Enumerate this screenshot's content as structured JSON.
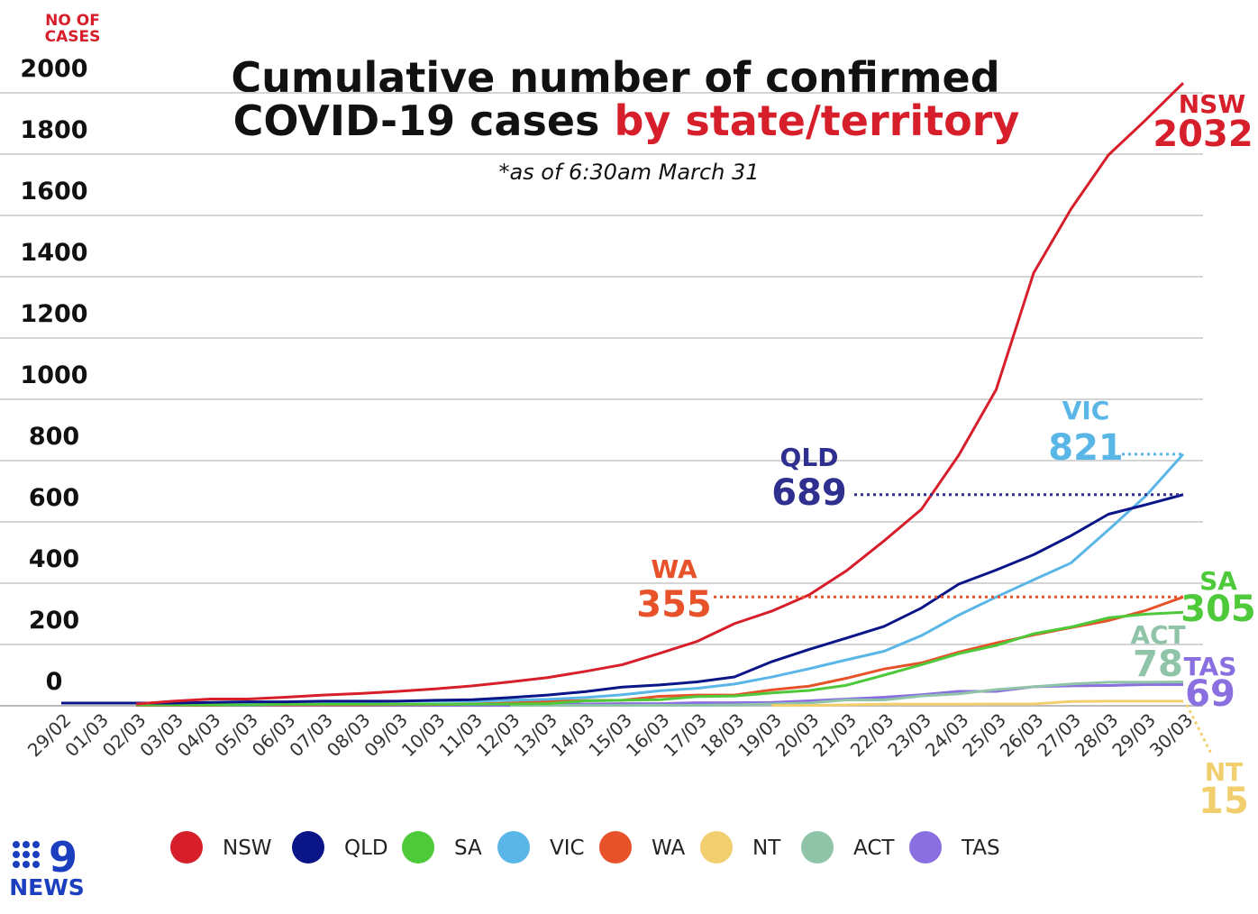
{
  "chart_data": {
    "type": "line",
    "title": [
      "Cumulative number of confirmed",
      "COVID-19 cases",
      "by state/territory"
    ],
    "subtitle": "*as of 6:30am March 31",
    "y_label": "NO OF CASES",
    "categories": [
      "29/02",
      "01/03",
      "02/03",
      "03/03",
      "04/03",
      "05/03",
      "06/03",
      "07/03",
      "08/03",
      "09/03",
      "10/03",
      "11/03",
      "12/03",
      "13/03",
      "14/03",
      "15/03",
      "16/03",
      "17/03",
      "18/03",
      "19/03",
      "20/03",
      "21/03",
      "22/03",
      "23/03",
      "24/03",
      "25/03",
      "26/03",
      "27/03",
      "28/03",
      "29/03",
      "30/03"
    ],
    "ylim": [
      0,
      2000
    ],
    "yticks": [
      0,
      200,
      400,
      600,
      800,
      1000,
      1200,
      1400,
      1600,
      1800,
      2000
    ],
    "grid": true,
    "series": [
      {
        "name": "NSW",
        "color": "#d71f2b",
        "values": [
          null,
          null,
          6,
          15,
          22,
          22,
          28,
          35,
          40,
          47,
          55,
          65,
          78,
          92,
          112,
          134,
          171,
          210,
          268,
          309,
          362,
          441,
          538,
          641,
          818,
          1032,
          1412,
          1621,
          1797,
          1912,
          2032
        ]
      },
      {
        "name": "QLD",
        "color": "#0a1588",
        "values": [
          9,
          9,
          9,
          9,
          11,
          13,
          13,
          15,
          15,
          15,
          18,
          20,
          27,
          35,
          46,
          61,
          68,
          78,
          94,
          144,
          184,
          221,
          259,
          319,
          397,
          443,
          493,
          555,
          625,
          656,
          689
        ]
      },
      {
        "name": "SA",
        "color": "#4ec93a",
        "values": [
          null,
          null,
          3,
          3,
          3,
          3,
          5,
          5,
          5,
          5,
          5,
          5,
          6,
          7,
          16,
          18,
          20,
          30,
          32,
          42,
          50,
          67,
          100,
          134,
          170,
          197,
          235,
          257,
          287,
          299,
          305
        ]
      },
      {
        "name": "VIC",
        "color": "#5ab6e6",
        "values": [
          null,
          null,
          9,
          9,
          10,
          10,
          11,
          11,
          11,
          15,
          15,
          15,
          18,
          21,
          27,
          36,
          49,
          57,
          71,
          94,
          121,
          150,
          178,
          229,
          296,
          355,
          411,
          466,
          574,
          685,
          821
        ]
      },
      {
        "name": "WA",
        "color": "#e8522a",
        "values": [
          null,
          null,
          2,
          2,
          2,
          3,
          3,
          3,
          3,
          4,
          4,
          6,
          9,
          14,
          17,
          18,
          31,
          35,
          35,
          52,
          64,
          90,
          120,
          140,
          175,
          205,
          231,
          255,
          278,
          311,
          355
        ]
      },
      {
        "name": "NT",
        "color": "#f2cf6e",
        "values": [
          null,
          null,
          null,
          null,
          null,
          null,
          null,
          null,
          null,
          null,
          null,
          null,
          null,
          null,
          null,
          null,
          null,
          null,
          null,
          1,
          1,
          3,
          5,
          5,
          5,
          6,
          6,
          14,
          15,
          15,
          15
        ]
      },
      {
        "name": "ACT",
        "color": "#8fc4a8",
        "values": [
          null,
          null,
          null,
          null,
          null,
          null,
          null,
          null,
          null,
          null,
          null,
          null,
          1,
          1,
          1,
          1,
          2,
          2,
          3,
          6,
          9,
          19,
          19,
          32,
          39,
          53,
          62,
          71,
          77,
          77,
          78
        ]
      },
      {
        "name": "TAS",
        "color": "#8a6fe0",
        "values": [
          null,
          null,
          1,
          1,
          1,
          1,
          1,
          1,
          1,
          1,
          1,
          1,
          1,
          5,
          6,
          7,
          7,
          10,
          10,
          11,
          16,
          22,
          28,
          36,
          47,
          47,
          62,
          65,
          66,
          69,
          69
        ]
      }
    ],
    "logo": {
      "mark": "9",
      "text": "NEWS"
    }
  }
}
